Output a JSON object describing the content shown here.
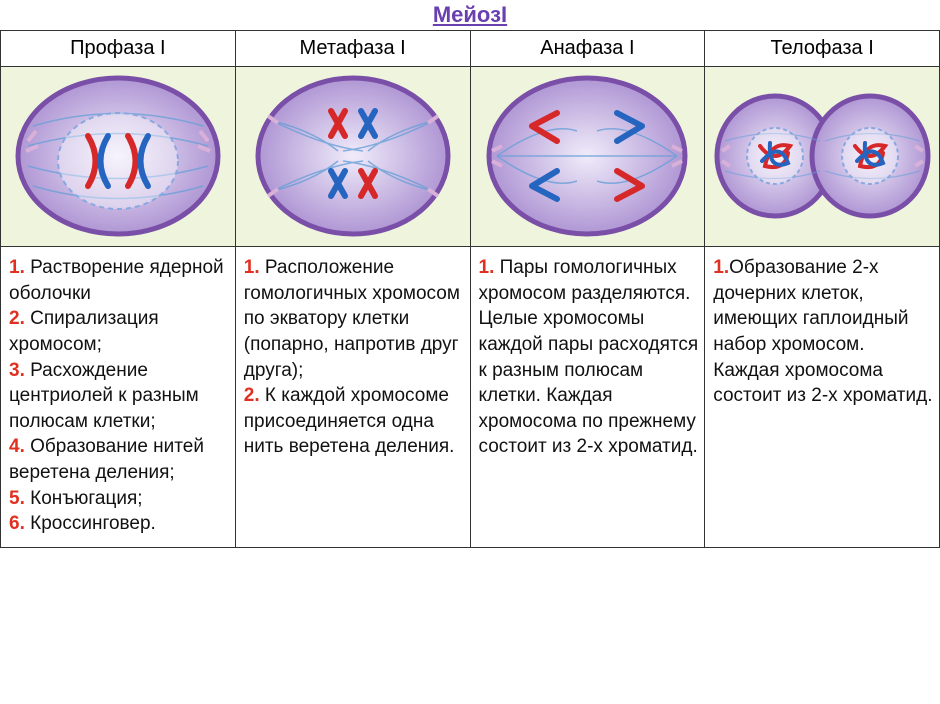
{
  "title": "МейозI",
  "title_color": "#6a3fb0",
  "columns": [
    {
      "header": "Профаза I"
    },
    {
      "header": "Метафаза I"
    },
    {
      "header": "Анафаза I"
    },
    {
      "header": "Телофаза I"
    }
  ],
  "colors": {
    "num_color": "#e03020",
    "text_color": "#111111",
    "cell_bg": "#eef5dc",
    "cell_membrane": "#7a4fa8",
    "cell_fill_outer": "#b8a2d9",
    "cell_fill_inner": "#e6dff5",
    "spindle": "#6aa0d8",
    "centriole": "#d8b0d8",
    "chrom_red": "#d62828",
    "chrom_blue": "#2565c0",
    "nucleus_stroke": "#8aa8e0"
  },
  "descriptions": {
    "prophase": [
      {
        "n": "1.",
        "t": " Растворение ядерной оболочки"
      },
      {
        "n": "2.",
        "t": " Спирализация хромосом;"
      },
      {
        "n": "3.",
        "t": " Расхождение центриолей к разным полюсам клетки;"
      },
      {
        "n": "4.",
        "t": " Образование нитей веретена деления;"
      },
      {
        "n": "5.",
        "t": " Конъюгация;"
      },
      {
        "n": "6.",
        "t": " Кроссинговер."
      }
    ],
    "metaphase": [
      {
        "n": "1.",
        "t": " Расположение гомологичных хромосом по экватору клетки (попарно, напротив друг друга);"
      },
      {
        "n": "2.",
        "t": " К каждой хромосоме присоединяется одна нить веретена деления."
      }
    ],
    "anaphase": [
      {
        "n": "1.",
        "t": " Пары гомологичных хромосом разделяются. Целые хромосомы каждой пары расходятся к разным полюсам клетки. Каждая хромосома по прежнему состоит из 2-х хроматид."
      }
    ],
    "telophase": [
      {
        "n": "1.",
        "t": "Образование 2-х дочерних клеток, имеющих гаплоидный набор хромосом. Каждая хромосома состоит из 2-х хроматид."
      }
    ]
  }
}
